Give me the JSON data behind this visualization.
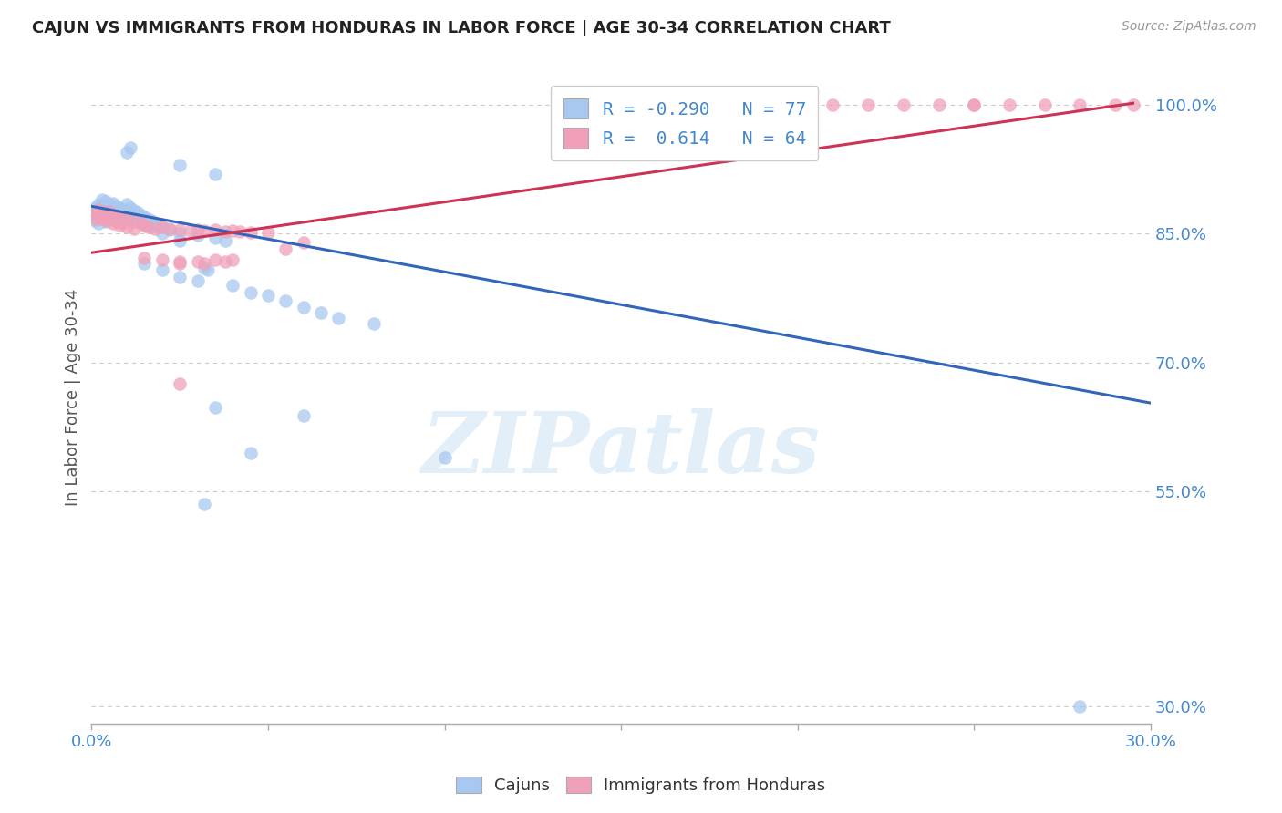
{
  "title": "CAJUN VS IMMIGRANTS FROM HONDURAS IN LABOR FORCE | AGE 30-34 CORRELATION CHART",
  "source": "Source: ZipAtlas.com",
  "ylabel": "In Labor Force | Age 30-34",
  "xlim": [
    0.0,
    0.3
  ],
  "ylim": [
    0.28,
    1.04
  ],
  "xticks": [
    0.0,
    0.05,
    0.1,
    0.15,
    0.2,
    0.25,
    0.3
  ],
  "xticklabels": [
    "0.0%",
    "",
    "",
    "",
    "",
    "",
    "30.0%"
  ],
  "yticks_right": [
    1.0,
    0.85,
    0.7,
    0.55
  ],
  "ytick_right_labels": [
    "100.0%",
    "85.0%",
    "70.0%",
    "55.0%"
  ],
  "grid_color": "#cccccc",
  "background_color": "#ffffff",
  "blue_color": "#a8c8f0",
  "pink_color": "#f0a0b8",
  "blue_line_color": "#3366bb",
  "pink_line_color": "#cc3355",
  "R_blue": -0.29,
  "N_blue": 77,
  "R_pink": 0.614,
  "N_pink": 64,
  "watermark_text": "ZIPatlas",
  "legend_label_blue": "Cajuns",
  "legend_label_pink": "Immigrants from Honduras",
  "blue_line_x0": 0.0,
  "blue_line_y0": 0.882,
  "blue_line_x1": 0.3,
  "blue_line_y1": 0.653,
  "pink_line_x0": 0.0,
  "pink_line_y0": 0.828,
  "pink_line_x1": 0.295,
  "pink_line_y1": 1.002,
  "blue_dots": [
    [
      0.001,
      0.88
    ],
    [
      0.001,
      0.875
    ],
    [
      0.001,
      0.87
    ],
    [
      0.001,
      0.865
    ],
    [
      0.002,
      0.885
    ],
    [
      0.002,
      0.878
    ],
    [
      0.002,
      0.87
    ],
    [
      0.002,
      0.862
    ],
    [
      0.003,
      0.89
    ],
    [
      0.003,
      0.882
    ],
    [
      0.003,
      0.875
    ],
    [
      0.003,
      0.868
    ],
    [
      0.004,
      0.888
    ],
    [
      0.004,
      0.88
    ],
    [
      0.004,
      0.872
    ],
    [
      0.004,
      0.864
    ],
    [
      0.005,
      0.885
    ],
    [
      0.005,
      0.878
    ],
    [
      0.005,
      0.87
    ],
    [
      0.006,
      0.886
    ],
    [
      0.006,
      0.88
    ],
    [
      0.006,
      0.874
    ],
    [
      0.007,
      0.882
    ],
    [
      0.007,
      0.876
    ],
    [
      0.008,
      0.88
    ],
    [
      0.008,
      0.873
    ],
    [
      0.009,
      0.878
    ],
    [
      0.009,
      0.87
    ],
    [
      0.01,
      0.884
    ],
    [
      0.01,
      0.876
    ],
    [
      0.011,
      0.88
    ],
    [
      0.011,
      0.872
    ],
    [
      0.012,
      0.877
    ],
    [
      0.012,
      0.869
    ],
    [
      0.013,
      0.875
    ],
    [
      0.013,
      0.867
    ],
    [
      0.014,
      0.872
    ],
    [
      0.015,
      0.87
    ],
    [
      0.015,
      0.862
    ],
    [
      0.016,
      0.868
    ],
    [
      0.016,
      0.86
    ],
    [
      0.017,
      0.865
    ],
    [
      0.017,
      0.858
    ],
    [
      0.018,
      0.862
    ],
    [
      0.019,
      0.86
    ],
    [
      0.02,
      0.858
    ],
    [
      0.02,
      0.85
    ],
    [
      0.022,
      0.855
    ],
    [
      0.025,
      0.85
    ],
    [
      0.025,
      0.842
    ],
    [
      0.03,
      0.848
    ],
    [
      0.035,
      0.845
    ],
    [
      0.038,
      0.842
    ],
    [
      0.01,
      0.945
    ],
    [
      0.011,
      0.95
    ],
    [
      0.025,
      0.93
    ],
    [
      0.035,
      0.92
    ],
    [
      0.015,
      0.815
    ],
    [
      0.02,
      0.808
    ],
    [
      0.025,
      0.8
    ],
    [
      0.03,
      0.795
    ],
    [
      0.04,
      0.79
    ],
    [
      0.045,
      0.782
    ],
    [
      0.05,
      0.778
    ],
    [
      0.055,
      0.772
    ],
    [
      0.06,
      0.765
    ],
    [
      0.065,
      0.758
    ],
    [
      0.07,
      0.752
    ],
    [
      0.08,
      0.745
    ],
    [
      0.035,
      0.648
    ],
    [
      0.06,
      0.638
    ],
    [
      0.045,
      0.595
    ],
    [
      0.1,
      0.59
    ],
    [
      0.032,
      0.535
    ],
    [
      0.032,
      0.81
    ],
    [
      0.033,
      0.808
    ],
    [
      0.28,
      0.3
    ]
  ],
  "pink_dots": [
    [
      0.001,
      0.875
    ],
    [
      0.001,
      0.867
    ],
    [
      0.002,
      0.878
    ],
    [
      0.002,
      0.87
    ],
    [
      0.003,
      0.876
    ],
    [
      0.003,
      0.868
    ],
    [
      0.004,
      0.873
    ],
    [
      0.004,
      0.865
    ],
    [
      0.005,
      0.876
    ],
    [
      0.005,
      0.868
    ],
    [
      0.006,
      0.87
    ],
    [
      0.006,
      0.862
    ],
    [
      0.007,
      0.872
    ],
    [
      0.007,
      0.864
    ],
    [
      0.008,
      0.868
    ],
    [
      0.008,
      0.86
    ],
    [
      0.009,
      0.87
    ],
    [
      0.009,
      0.862
    ],
    [
      0.01,
      0.866
    ],
    [
      0.01,
      0.858
    ],
    [
      0.012,
      0.864
    ],
    [
      0.012,
      0.856
    ],
    [
      0.014,
      0.862
    ],
    [
      0.015,
      0.86
    ],
    [
      0.016,
      0.858
    ],
    [
      0.018,
      0.856
    ],
    [
      0.02,
      0.858
    ],
    [
      0.022,
      0.856
    ],
    [
      0.025,
      0.855
    ],
    [
      0.028,
      0.854
    ],
    [
      0.03,
      0.855
    ],
    [
      0.032,
      0.854
    ],
    [
      0.035,
      0.855
    ],
    [
      0.038,
      0.853
    ],
    [
      0.04,
      0.854
    ],
    [
      0.042,
      0.853
    ],
    [
      0.045,
      0.852
    ],
    [
      0.05,
      0.852
    ],
    [
      0.015,
      0.822
    ],
    [
      0.02,
      0.82
    ],
    [
      0.025,
      0.818
    ],
    [
      0.025,
      0.815
    ],
    [
      0.03,
      0.818
    ],
    [
      0.032,
      0.815
    ],
    [
      0.035,
      0.82
    ],
    [
      0.038,
      0.818
    ],
    [
      0.04,
      0.82
    ],
    [
      0.055,
      0.832
    ],
    [
      0.06,
      0.84
    ],
    [
      0.025,
      0.675
    ],
    [
      0.2,
      1.0
    ],
    [
      0.21,
      1.0
    ],
    [
      0.22,
      1.0
    ],
    [
      0.23,
      1.0
    ],
    [
      0.24,
      1.0
    ],
    [
      0.25,
      1.0
    ],
    [
      0.26,
      1.0
    ],
    [
      0.27,
      1.0
    ],
    [
      0.28,
      1.0
    ],
    [
      0.29,
      1.0
    ],
    [
      0.17,
      1.0
    ],
    [
      0.18,
      1.0
    ],
    [
      0.25,
      1.0
    ],
    [
      0.295,
      1.0
    ]
  ]
}
